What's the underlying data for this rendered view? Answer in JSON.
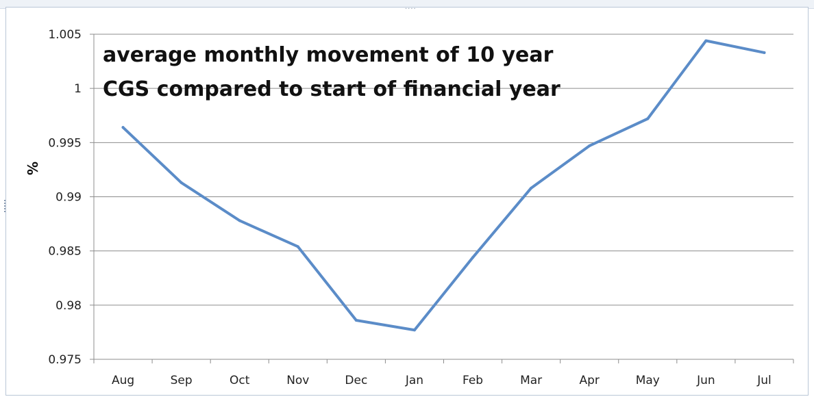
{
  "chart_data": {
    "type": "line",
    "title_lines": [
      "average monthly movement of 10 year",
      "CGS compared to start of financial year"
    ],
    "xlabel": "",
    "ylabel": "%",
    "categories": [
      "Aug",
      "Sep",
      "Oct",
      "Nov",
      "Dec",
      "Jan",
      "Feb",
      "Mar",
      "Apr",
      "May",
      "Jun",
      "Jul"
    ],
    "series": [
      {
        "values": [
          0.9964,
          0.9913,
          0.9878,
          0.9854,
          0.9786,
          0.9777,
          0.9844,
          0.9908,
          0.9947,
          0.9972,
          1.0044,
          1.0033
        ]
      }
    ],
    "ylim": [
      0.975,
      1.005
    ],
    "yticks": [
      0.975,
      0.98,
      0.985,
      0.99,
      0.995,
      1,
      1.005
    ],
    "ytick_labels": [
      "0.975",
      "0.98",
      "0.985",
      "0.99",
      "0.995",
      "1",
      "1.005"
    ],
    "grid": true,
    "line_color": "#5b8cc8"
  }
}
